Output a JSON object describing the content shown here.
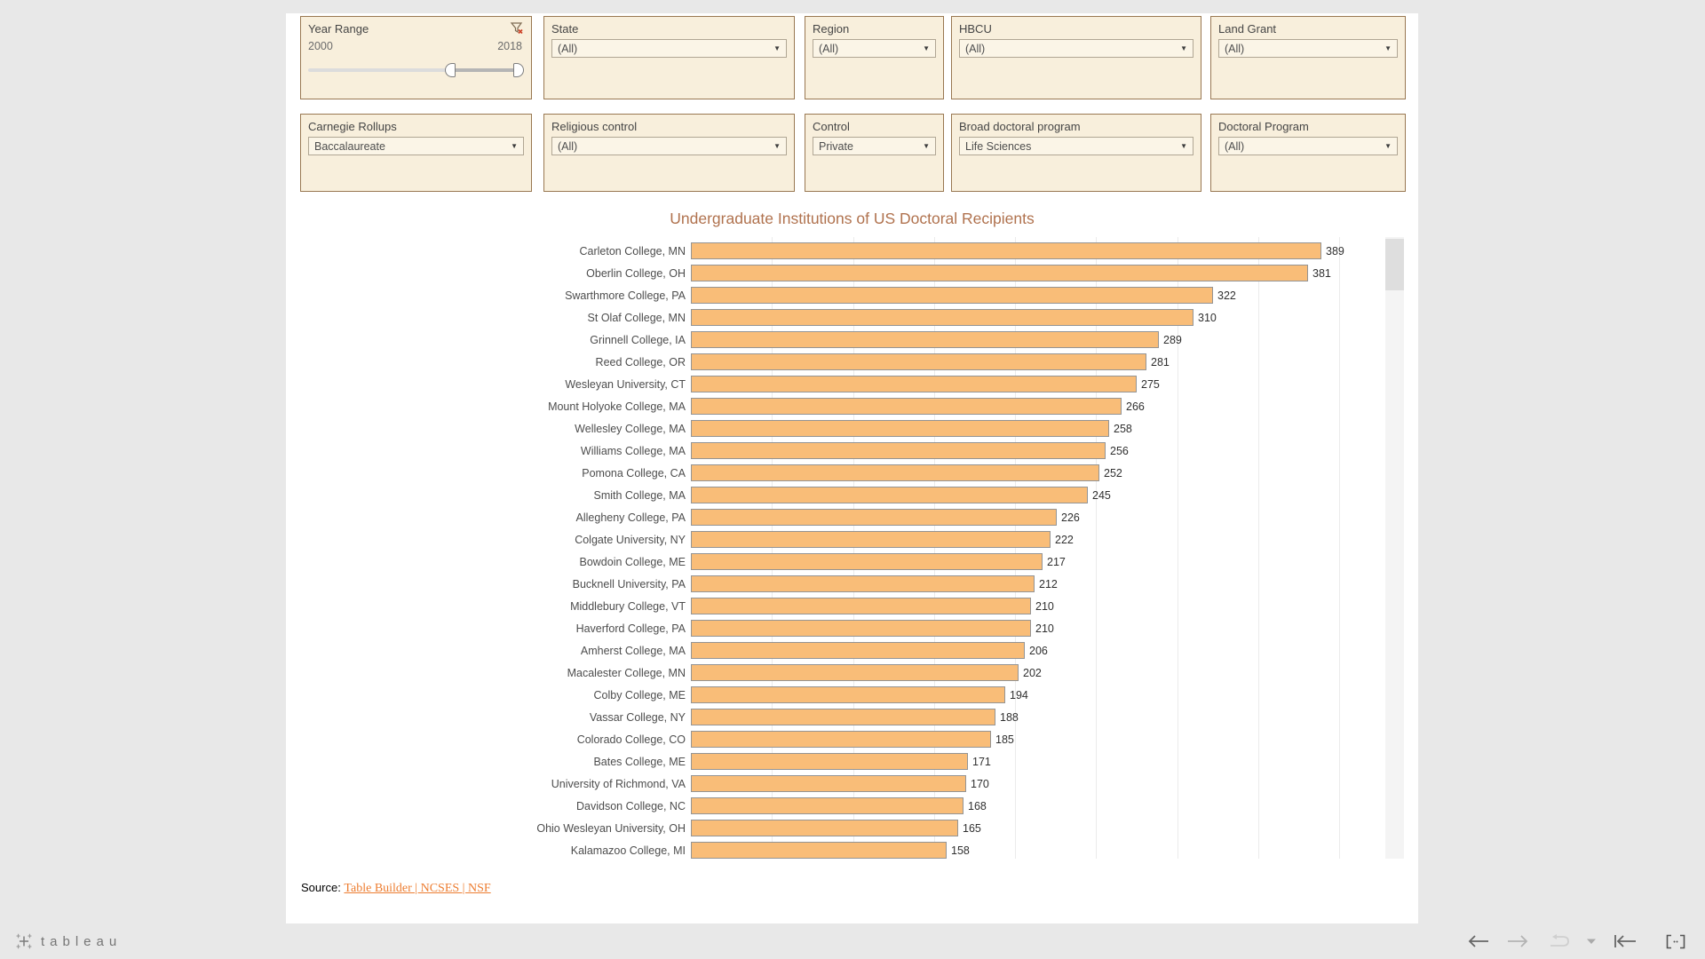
{
  "filters": {
    "year_range": {
      "label": "Year Range",
      "min": "2000",
      "max": "2018"
    },
    "row1": [
      {
        "label": "State",
        "value": "(All)"
      },
      {
        "label": "Region",
        "value": "(All)"
      },
      {
        "label": "HBCU",
        "value": "(All)"
      },
      {
        "label": "Land Grant",
        "value": "(All)"
      }
    ],
    "row2": [
      {
        "label": "Carnegie Rollups",
        "value": "Baccalaureate"
      },
      {
        "label": "Religious control",
        "value": "(All)"
      },
      {
        "label": "Control",
        "value": "Private"
      },
      {
        "label": "Broad doctoral program",
        "value": "Life Sciences"
      },
      {
        "label": "Doctoral Program",
        "value": "(All)"
      }
    ]
  },
  "chart_data": {
    "type": "bar",
    "orientation": "horizontal",
    "title": "Undergraduate Institutions of US Doctoral Recipients",
    "categories": [
      "Carleton College, MN",
      "Oberlin College, OH",
      "Swarthmore College, PA",
      "St Olaf College, MN",
      "Grinnell College, IA",
      "Reed College, OR",
      "Wesleyan University, CT",
      "Mount Holyoke College, MA",
      "Wellesley College, MA",
      "Williams College, MA",
      "Pomona College, CA",
      "Smith College, MA",
      "Allegheny College, PA",
      "Colgate University, NY",
      "Bowdoin College, ME",
      "Bucknell University, PA",
      "Middlebury College, VT",
      "Haverford College, PA",
      "Amherst College, MA",
      "Macalester College, MN",
      "Colby College, ME",
      "Vassar College, NY",
      "Colorado College, CO",
      "Bates College, ME",
      "University of Richmond, VA",
      "Davidson College, NC",
      "Ohio Wesleyan University, OH",
      "Kalamazoo College, MI"
    ],
    "values": [
      389,
      381,
      322,
      310,
      289,
      281,
      275,
      266,
      258,
      256,
      252,
      245,
      226,
      222,
      217,
      212,
      210,
      210,
      206,
      202,
      194,
      188,
      185,
      171,
      170,
      168,
      165,
      158
    ],
    "data_labels": true,
    "xlim": [
      0,
      400
    ],
    "gridline_step": 50,
    "grid": true,
    "legend": "none",
    "bar_color": "#f9bd78",
    "bar_border_color": "#949494",
    "title_color": "#b0724e"
  },
  "source": {
    "prefix": "Source: ",
    "link_text": "Table Builder | NCSES | NSF"
  },
  "footer": {
    "logo_text": "tableau"
  }
}
